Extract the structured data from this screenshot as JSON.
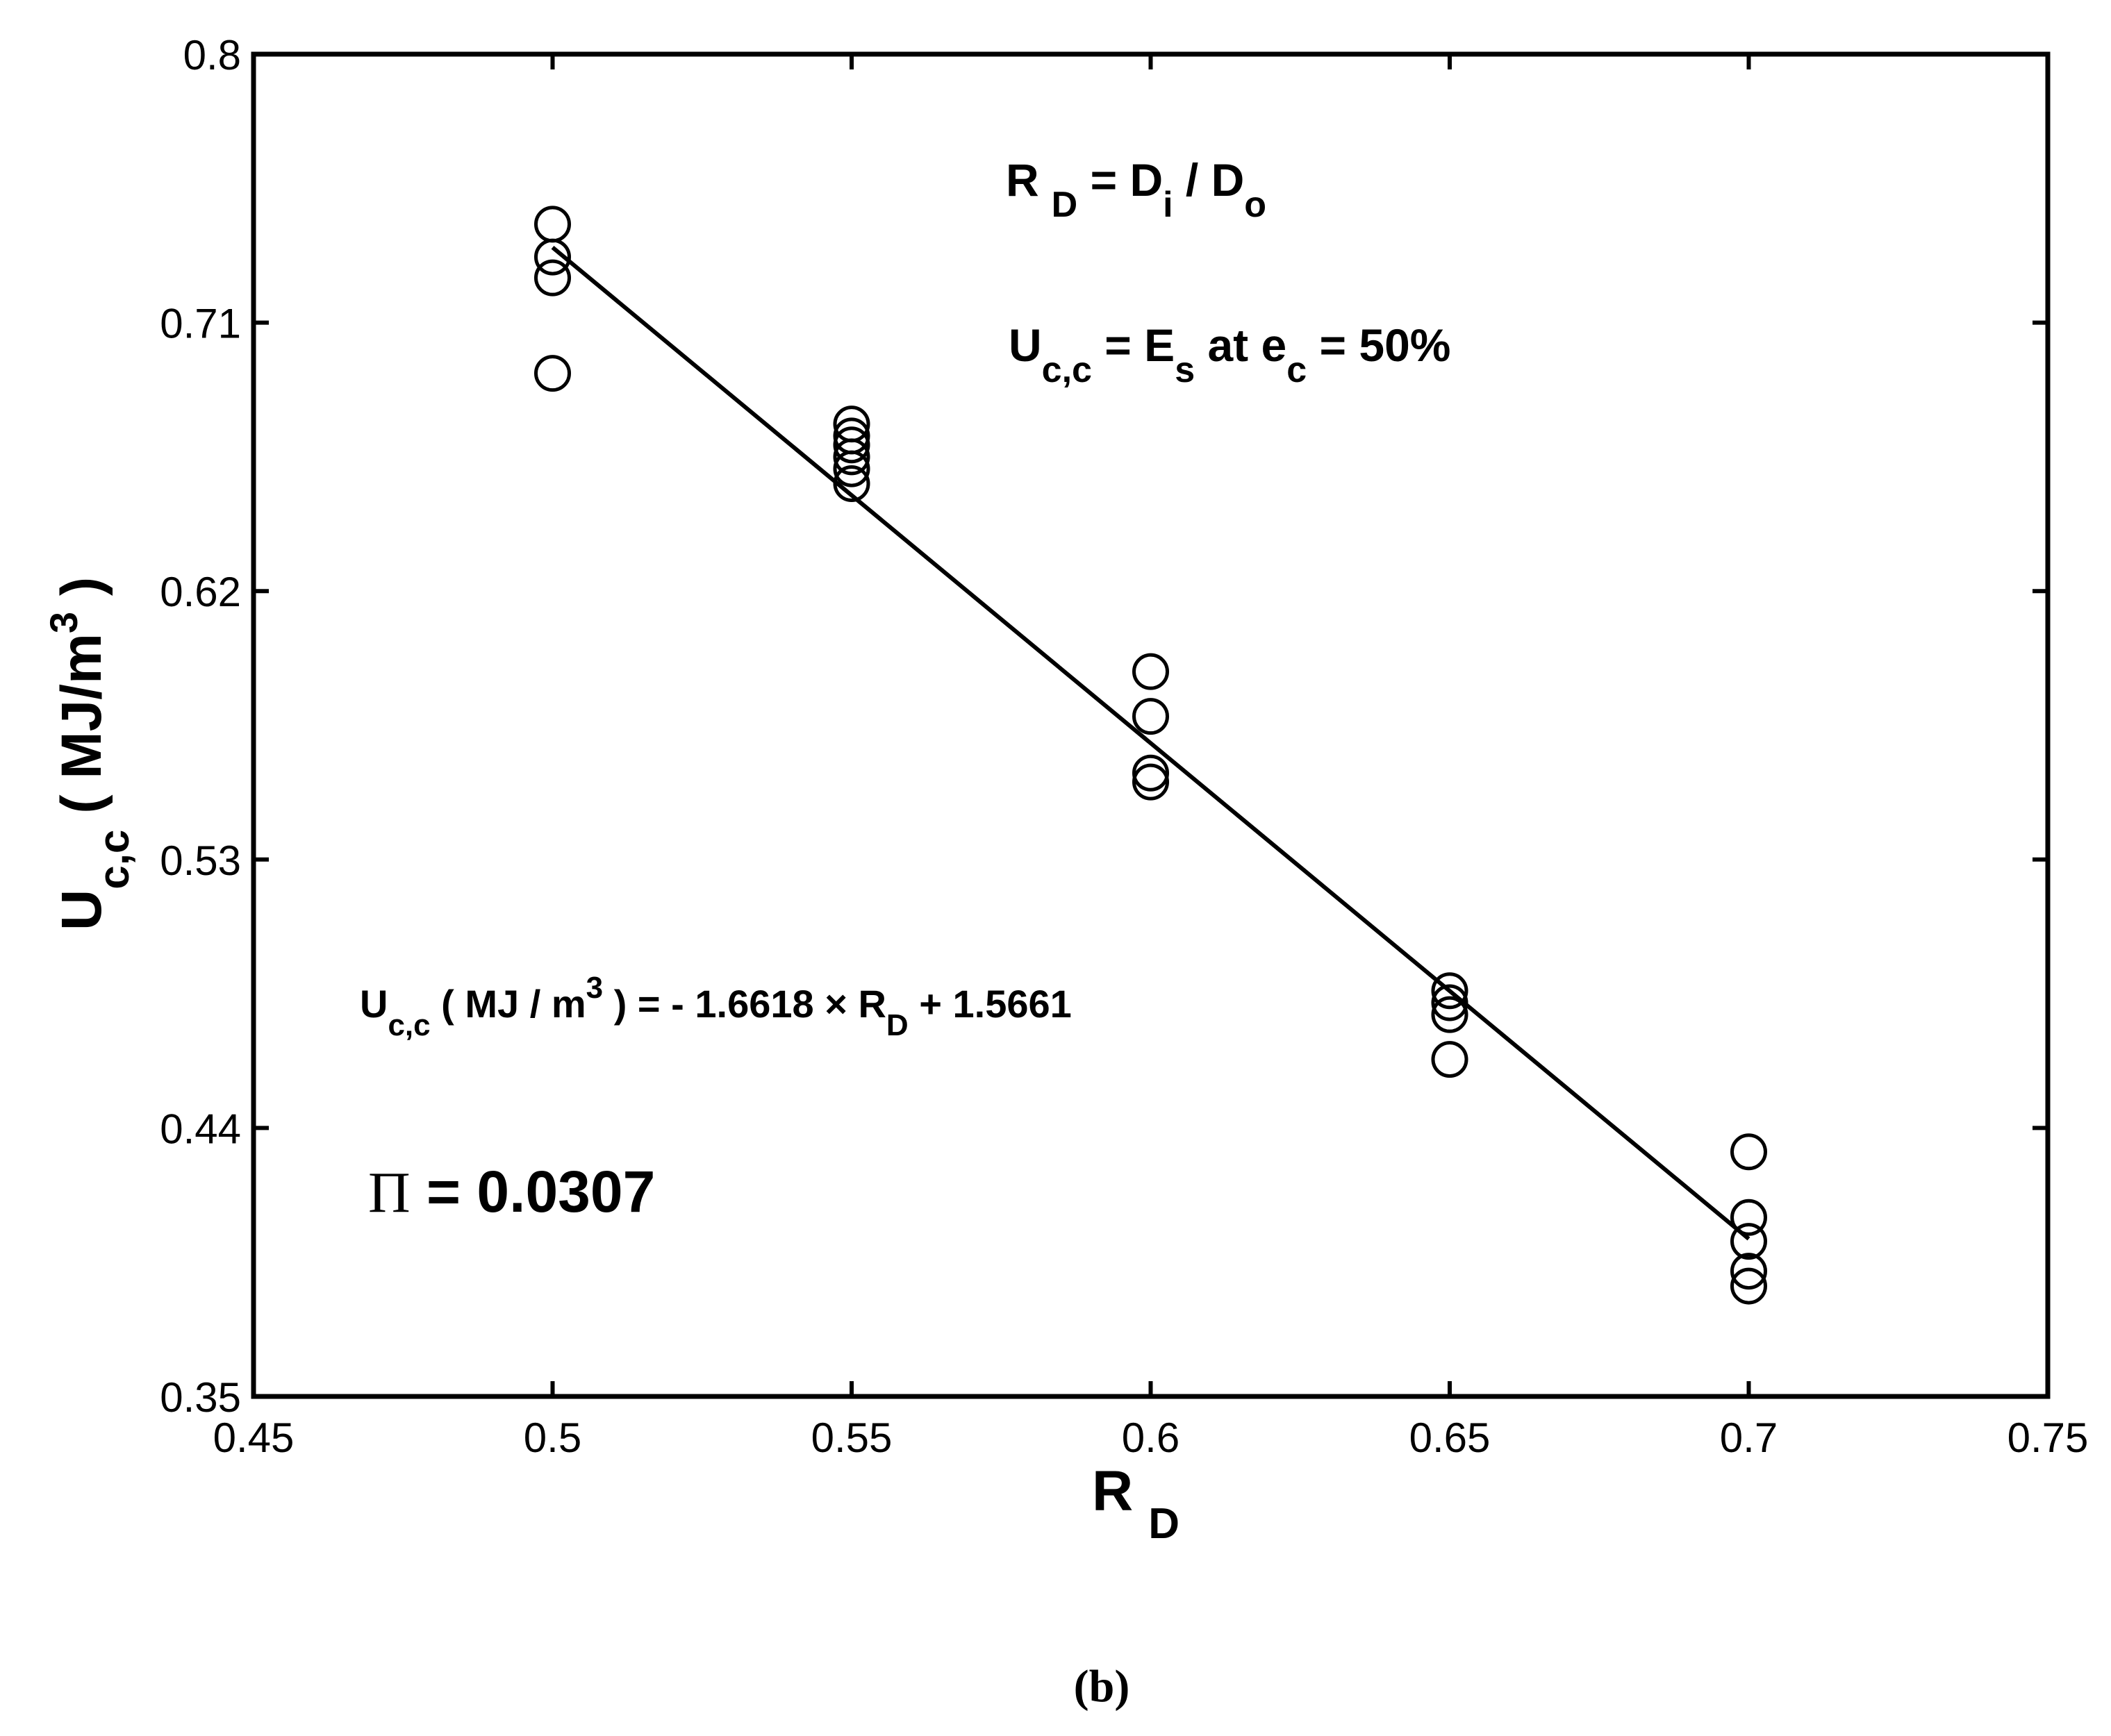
{
  "chart_data": {
    "type": "scatter",
    "xlim": [
      0.45,
      0.75
    ],
    "ylim": [
      0.35,
      0.8
    ],
    "x_ticks": [
      "0.45",
      "0.5",
      "0.55",
      "0.6",
      "0.65",
      "0.7",
      "0.75"
    ],
    "y_ticks": [
      "0.35",
      "0.44",
      "0.53",
      "0.62",
      "0.71",
      "0.8"
    ],
    "xlabel": {
      "main": "R",
      "sub": "D"
    },
    "ylabel": {
      "main": "U",
      "sub": "c,c",
      "rest": " ( MJ/m",
      "sup": "3",
      "end": " )"
    },
    "grid": false,
    "points": [
      {
        "x": 0.5,
        "y": 0.743
      },
      {
        "x": 0.5,
        "y": 0.732
      },
      {
        "x": 0.5,
        "y": 0.725
      },
      {
        "x": 0.5,
        "y": 0.693
      },
      {
        "x": 0.55,
        "y": 0.676
      },
      {
        "x": 0.55,
        "y": 0.672
      },
      {
        "x": 0.55,
        "y": 0.669
      },
      {
        "x": 0.55,
        "y": 0.665
      },
      {
        "x": 0.55,
        "y": 0.661
      },
      {
        "x": 0.55,
        "y": 0.656
      },
      {
        "x": 0.6,
        "y": 0.593
      },
      {
        "x": 0.6,
        "y": 0.578
      },
      {
        "x": 0.6,
        "y": 0.559
      },
      {
        "x": 0.6,
        "y": 0.556
      },
      {
        "x": 0.65,
        "y": 0.486
      },
      {
        "x": 0.65,
        "y": 0.482
      },
      {
        "x": 0.65,
        "y": 0.478
      },
      {
        "x": 0.65,
        "y": 0.463
      },
      {
        "x": 0.7,
        "y": 0.432
      },
      {
        "x": 0.7,
        "y": 0.41
      },
      {
        "x": 0.7,
        "y": 0.402
      },
      {
        "x": 0.7,
        "y": 0.392
      },
      {
        "x": 0.7,
        "y": 0.387
      }
    ],
    "fit_line": {
      "slope": -1.6618,
      "intercept": 1.5661,
      "x_range": [
        0.5,
        0.7
      ]
    },
    "annotations": {
      "ratio_def": {
        "a": "R",
        "a_sub": "D",
        "b": " = D",
        "b_sub": "i",
        "c": " / D",
        "c_sub": "o"
      },
      "uc_def": {
        "a": "U",
        "a_sub": "c,c",
        "b": " = E",
        "b_sub": "s",
        "c": "  at  e",
        "c_sub": "c",
        "d": " =  50%"
      },
      "equation": {
        "a": "U",
        "a_sub": "c,c",
        "b": " ( MJ / m",
        "b_sup": "3",
        "c": " ) = - 1.6618 × R",
        "c_sub": "D",
        "d": " + 1.5661"
      },
      "pi_value": {
        "symbol": "Π",
        "text": " = 0.0307"
      }
    },
    "caption": "(b)"
  }
}
